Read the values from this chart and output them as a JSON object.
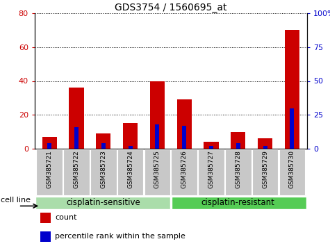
{
  "title": "GDS3754 / 1560695_at",
  "categories": [
    "GSM385721",
    "GSM385722",
    "GSM385723",
    "GSM385724",
    "GSM385725",
    "GSM385726",
    "GSM385727",
    "GSM385728",
    "GSM385729",
    "GSM385730"
  ],
  "count_values": [
    7,
    36,
    9,
    15,
    40,
    29,
    4,
    10,
    6,
    70
  ],
  "percentile_values": [
    4,
    16,
    4,
    2,
    18,
    17,
    2,
    4,
    2,
    30
  ],
  "left_ylim": [
    0,
    80
  ],
  "right_ylim": [
    0,
    100
  ],
  "left_yticks": [
    0,
    20,
    40,
    60,
    80
  ],
  "right_yticks": [
    0,
    25,
    50,
    75,
    100
  ],
  "right_yticklabels": [
    "0",
    "25",
    "50",
    "75",
    "100%"
  ],
  "bar_color": "#cc0000",
  "percentile_color": "#0000cc",
  "bar_width": 0.55,
  "groups": [
    {
      "label": "cisplatin-sensitive",
      "start": 0,
      "end": 5,
      "color": "#aaddaa"
    },
    {
      "label": "cisplatin-resistant",
      "start": 5,
      "end": 10,
      "color": "#55cc55"
    }
  ],
  "legend_items": [
    {
      "label": "count",
      "color": "#cc0000"
    },
    {
      "label": "percentile rank within the sample",
      "color": "#0000cc"
    }
  ],
  "tick_bg_color": "#c8c8c8",
  "grid_color": "#000000",
  "background_color": "#ffffff"
}
